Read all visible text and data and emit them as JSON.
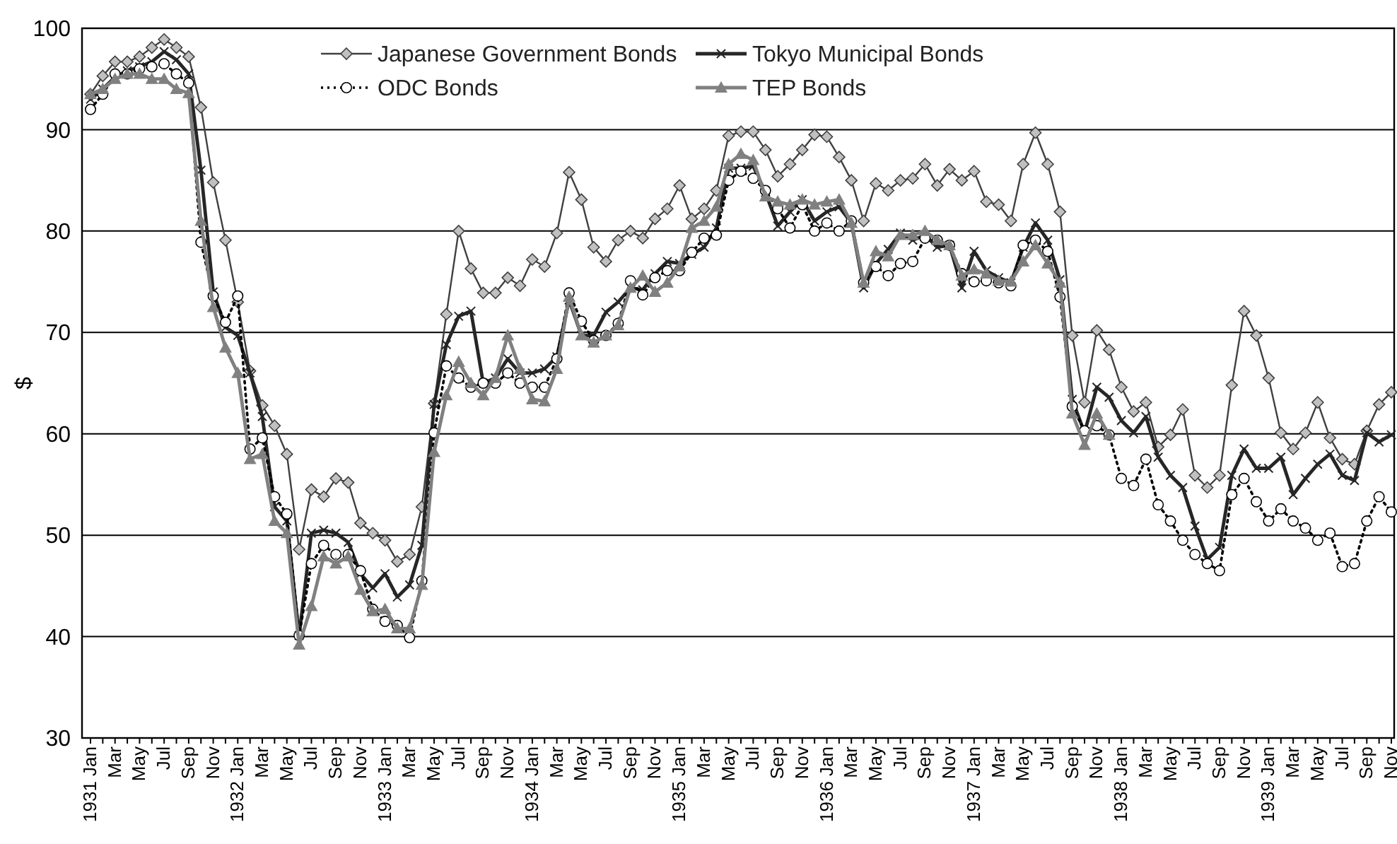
{
  "chart_data": {
    "type": "line",
    "ylabel": "$",
    "categories": [
      "1931 Jan",
      null,
      "Mar",
      null,
      "May",
      null,
      "Jul",
      null,
      "Sep",
      null,
      "Nov",
      null,
      "1932 Jan",
      null,
      "Mar",
      null,
      "May",
      null,
      "Jul",
      null,
      "Sep",
      null,
      "Nov",
      null,
      "1933 Jan",
      null,
      "Mar",
      null,
      "May",
      null,
      "Jul",
      null,
      "Sep",
      null,
      "Nov",
      null,
      "1934 Jan",
      null,
      "Mar",
      null,
      "May",
      null,
      "Jul",
      null,
      "Sep",
      null,
      "Nov",
      null,
      "1935 Jan",
      null,
      "Mar",
      null,
      "May",
      null,
      "Jul",
      null,
      "Sep",
      null,
      "Nov",
      null,
      "1936 Jan",
      null,
      "Mar",
      null,
      "May",
      null,
      "Jul",
      null,
      "Sep",
      null,
      "Nov",
      null,
      "1937 Jan",
      null,
      "Mar",
      null,
      "May",
      null,
      "Jul",
      null,
      "Sep",
      null,
      "Nov",
      null,
      "1938 Jan",
      null,
      "Mar",
      null,
      "May",
      null,
      "Jul",
      null,
      "Sep",
      null,
      "Nov",
      null,
      "1939 Jan",
      null,
      "Mar",
      null,
      "May",
      null,
      "Jul",
      null,
      "Sep",
      null,
      "Nov"
    ],
    "ylim": [
      30,
      100
    ],
    "yticks": [
      30,
      40,
      50,
      60,
      70,
      80,
      90,
      100
    ],
    "grid": "y",
    "legend": "top",
    "series": [
      {
        "name": "Japanese Government Bonds",
        "color": "#404040",
        "marker": "diamond",
        "line_style": "solid",
        "values": [
          93.5,
          95.3,
          96.7,
          96.7,
          97.2,
          98.1,
          98.9,
          98.1,
          97.2,
          92.2,
          84.8,
          79.1,
          73,
          66.2,
          62.8,
          60.8,
          58,
          48.6,
          54.5,
          53.8,
          55.6,
          55.2,
          51.2,
          50.2,
          49.5,
          47.4,
          48.1,
          52.8,
          63,
          71.8,
          80,
          76.3,
          73.9,
          73.9,
          75.4,
          74.6,
          77.2,
          76.5,
          79.8,
          85.8,
          83.1,
          78.4,
          77,
          79.1,
          80,
          79.3,
          81.2,
          82.2,
          84.5,
          81.2,
          82.2,
          84,
          89.4,
          89.8,
          89.8,
          88,
          85.4,
          86.6,
          88,
          89.5,
          89.3,
          87.3,
          85,
          81,
          84.7,
          84,
          85,
          85.2,
          86.6,
          84.5,
          86.1,
          85,
          85.9,
          82.9,
          82.6,
          81,
          86.6,
          89.7,
          86.6,
          81.9,
          69.7,
          63.1,
          70.2,
          68.3,
          64.6,
          62.2,
          63.1,
          58.7,
          59.9,
          62.4,
          55.9,
          54.7,
          55.9,
          64.8,
          72.1,
          69.7,
          65.5,
          60.1,
          58.5,
          60.1,
          63.1,
          59.6,
          57.5,
          57,
          60.3,
          62.9,
          64.1
        ]
      },
      {
        "name": "Tokyo Municipal Bonds",
        "color": "#262626",
        "marker": "cross",
        "line_style": "solid",
        "values": [
          93,
          94,
          95.2,
          95.8,
          96.2,
          96.7,
          97.7,
          96.9,
          95.5,
          86,
          74,
          70.5,
          69.7,
          66,
          61.7,
          52.8,
          51.4,
          40.1,
          50.2,
          50.5,
          50.2,
          49.3,
          46.2,
          44.8,
          46.2,
          43.9,
          45.1,
          49,
          62.9,
          68.8,
          71.6,
          72.1,
          65,
          65.5,
          67.4,
          66,
          66,
          66.4,
          67.6,
          73.2,
          69.7,
          69.7,
          72,
          73,
          74.4,
          74.2,
          75.8,
          77,
          76.8,
          77.7,
          78.4,
          80.3,
          86.2,
          86.2,
          86.4,
          83.8,
          80.5,
          81.9,
          83.1,
          81,
          81.9,
          82.4,
          80.8,
          74.4,
          76.8,
          78.2,
          79.8,
          79.1,
          79.6,
          78.4,
          78.6,
          74.4,
          78,
          76.1,
          75.4,
          74.9,
          78.4,
          80.8,
          79.1,
          75.2,
          63.4,
          60.1,
          64.6,
          63.6,
          61.3,
          60.1,
          61.7,
          57.7,
          55.9,
          54.7,
          50.9,
          47.6,
          48.8,
          55.9,
          58.5,
          56.6,
          56.6,
          57.7,
          54,
          55.6,
          57,
          58,
          55.9,
          55.4,
          60.1,
          59.2,
          59.9
        ]
      },
      {
        "name": "ODC Bonds",
        "color": "#000000",
        "marker": "circle",
        "line_style": "dotted",
        "values": [
          92,
          93.5,
          95.5,
          95.5,
          96,
          96.2,
          96.5,
          95.5,
          94.6,
          78.9,
          73.6,
          71,
          73.6,
          58.5,
          59.6,
          53.8,
          52.1,
          40.1,
          47.2,
          49,
          48.1,
          48.1,
          46.5,
          42.7,
          41.5,
          41.1,
          39.9,
          45.5,
          60.1,
          66.7,
          65.5,
          64.6,
          65,
          65,
          66,
          65,
          64.6,
          64.6,
          67.4,
          73.9,
          71.1,
          69.2,
          69.7,
          70.9,
          75.1,
          73.7,
          75.4,
          76.1,
          76.1,
          77.9,
          79.3,
          79.6,
          85,
          85.9,
          85.2,
          84,
          82.2,
          80.3,
          82.6,
          80,
          80.8,
          80,
          81,
          74.9,
          76.5,
          75.6,
          76.8,
          77,
          79.3,
          79.1,
          78.6,
          75.8,
          75,
          75.1,
          74.9,
          74.6,
          78.6,
          79.1,
          78,
          73.5,
          62.7,
          60.3,
          60.8,
          59.9,
          55.6,
          54.9,
          57.5,
          53,
          51.4,
          49.5,
          48.1,
          47.2,
          46.5,
          54,
          55.6,
          53.3,
          51.4,
          52.6,
          51.4,
          50.7,
          49.5,
          50.2,
          46.9,
          47.2,
          51.4,
          53.8,
          52.3
        ]
      },
      {
        "name": "TEP Bonds",
        "color": "#808080",
        "marker": "triangle",
        "line_style": "solid",
        "values": [
          93.5,
          94,
          95,
          95.5,
          95.5,
          95,
          95,
          94,
          93.6,
          81,
          72.5,
          68.5,
          66,
          57.5,
          58,
          51.4,
          50.2,
          39.2,
          43,
          47.9,
          47.2,
          47.9,
          44.6,
          42.5,
          42.7,
          40.8,
          40.8,
          45.1,
          58.2,
          63.8,
          67.1,
          65,
          63.8,
          65.5,
          69.7,
          66.4,
          63.4,
          63.2,
          66.4,
          73.5,
          69.7,
          69,
          69.7,
          70.7,
          74.4,
          75.6,
          74,
          74.9,
          76.5,
          80.3,
          81,
          82.4,
          86.6,
          87.6,
          87,
          83.4,
          82.9,
          82.6,
          83.1,
          82.6,
          82.9,
          83.1,
          80.8,
          74.9,
          78,
          77.5,
          79.6,
          79.6,
          80,
          79.1,
          78.6,
          75.6,
          76.2,
          75.8,
          75.1,
          75,
          77,
          78.6,
          76.8,
          74.9,
          62,
          58.9,
          62,
          59.9,
          null,
          null,
          null,
          null,
          null,
          null,
          null,
          null,
          null,
          null,
          null,
          null,
          null,
          null,
          null,
          null,
          null,
          null,
          null,
          null,
          null,
          null,
          null
        ]
      }
    ]
  }
}
